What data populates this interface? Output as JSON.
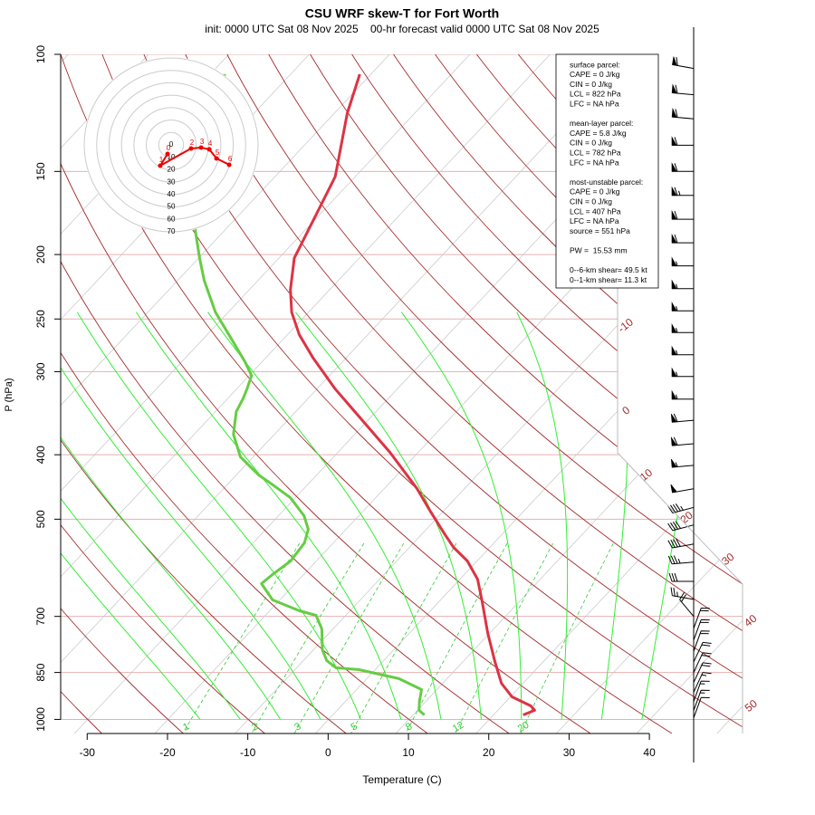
{
  "chart_data": {
    "type": "skewt",
    "title": "CSU WRF skew-T for Fort Worth",
    "subtitle": "init: 0000 UTC Sat 08 Nov 2025    00-hr forecast valid 0000 UTC Sat 08 Nov 2025",
    "xlabel": "Temperature (C)",
    "ylabel": "P (hPa)",
    "xlim": [
      -33.3,
      51.6
    ],
    "xticks": [
      -30,
      -20,
      -10,
      0,
      10,
      20,
      30,
      40
    ],
    "ylim": [
      1050,
      100
    ],
    "yticks": [
      100,
      150,
      200,
      250,
      300,
      400,
      500,
      700,
      850,
      1000
    ],
    "ylog": true,
    "isotherm_labels": [
      -10,
      0,
      10,
      20,
      30,
      40,
      50
    ],
    "mixing_ratio_labels": [
      1,
      2,
      3,
      5,
      8,
      12,
      20
    ],
    "temperature": {
      "color": "#dd3344",
      "pressure": [
        107.1,
        122.6,
        152.7,
        175.8,
        202.4,
        225.8,
        244.2,
        264.1,
        285.6,
        318.7,
        355.6,
        396.8,
        449.9,
        486.6,
        526.2,
        551.3,
        577.9,
        615.5,
        665.5,
        742.6,
        815.6,
        882.3,
        924.8,
        954.1,
        969.1,
        984.5
      ],
      "values": [
        -71.4,
        -68.4,
        -62.5,
        -60.3,
        -58.1,
        -54.9,
        -52.1,
        -48.5,
        -44.2,
        -37.7,
        -30.6,
        -23.5,
        -15.9,
        -11.6,
        -7.2,
        -4.5,
        -1.2,
        2.2,
        5.4,
        9.8,
        13.8,
        17.3,
        20.2,
        23.6,
        24.6,
        23.7
      ]
    },
    "dewpoint": {
      "color": "#66cc44",
      "pressure": [
        107.1,
        136.8,
        184.2,
        202.4,
        218.8,
        244.2,
        268.3,
        290.1,
        304.1,
        318.7,
        328.9,
        344.6,
        372.8,
        403.0,
        429.2,
        442.9,
        464.2,
        494.2,
        517.9,
        542.8,
        577.9,
        605.8,
        625.0,
        661.2,
        686.6,
        697.5,
        731.0,
        785.8,
        815.6,
        836.2,
        841.5,
        868.4,
        902.0,
        939.3,
        969.1,
        984.5
      ],
      "values": [
        -88.2,
        -82.0,
        -73.6,
        -69.9,
        -66.7,
        -61.6,
        -56.4,
        -52.1,
        -49.7,
        -48.7,
        -48.1,
        -47.4,
        -45.1,
        -41.6,
        -37.2,
        -34.5,
        -30.6,
        -26.8,
        -24.7,
        -23.6,
        -23.2,
        -23.9,
        -24.2,
        -20.9,
        -16.3,
        -13.7,
        -11.4,
        -8.9,
        -7.1,
        -5.1,
        -2.1,
        4.0,
        8.1,
        9.2,
        10.2,
        11.4
      ]
    },
    "hodograph": {
      "color": "#ee0000",
      "rings": [
        0,
        10,
        20,
        30,
        40,
        50,
        60,
        70
      ],
      "labels": [
        0,
        1,
        2,
        3,
        4,
        5,
        6
      ],
      "u": [
        -2.9,
        -8.8,
        16.0,
        24.1,
        30.7,
        36.5,
        46.7
      ],
      "v": [
        -7.3,
        -16.8,
        -2.9,
        -2.2,
        -3.6,
        -10.9,
        -16.0
      ]
    },
    "winds": {
      "pressure": [
        105,
        115,
        125,
        137,
        150,
        163,
        177,
        192,
        208,
        225,
        243,
        262,
        283,
        305,
        330,
        355,
        385,
        415,
        450,
        480,
        510,
        545,
        580,
        620,
        660,
        700,
        730,
        760,
        790,
        820,
        850,
        880,
        910,
        940,
        970,
        995
      ],
      "speed": [
        60,
        60,
        60,
        60,
        60,
        65,
        60,
        60,
        55,
        55,
        55,
        55,
        55,
        55,
        55,
        60,
        60,
        55,
        50,
        45,
        40,
        40,
        35,
        30,
        25,
        20,
        20,
        20,
        20,
        20,
        20,
        20,
        15,
        15,
        15,
        10
      ],
      "direction": [
        280,
        275,
        275,
        270,
        270,
        270,
        270,
        270,
        270,
        270,
        270,
        270,
        270,
        270,
        270,
        265,
        265,
        265,
        260,
        255,
        255,
        260,
        265,
        270,
        280,
        320,
        20,
        20,
        20,
        25,
        25,
        25,
        25,
        20,
        20,
        20
      ]
    },
    "stats": [
      [
        "surface parcel:",
        "CAPE = 0 J/kg",
        "CIN = 0 J/kg",
        "LCL = 822 hPa",
        "LFC = NA hPa"
      ],
      [
        "mean-layer parcel:",
        "CAPE = 5.8 J/kg",
        "CIN = 0 J/kg",
        "LCL = 782 hPa",
        "LFC = NA hPa"
      ],
      [
        "most-unstable parcel:",
        "CAPE = 0 J/kg",
        "CIN = 0 J/kg",
        "LCL = 407 hPa",
        "LFC = NA hPa",
        "source = 551 hPa"
      ],
      [
        "PW =  15.53 mm"
      ],
      [
        "0--6-km shear= 49.5 kt",
        "0--1-km shear= 11.3 kt"
      ]
    ]
  }
}
